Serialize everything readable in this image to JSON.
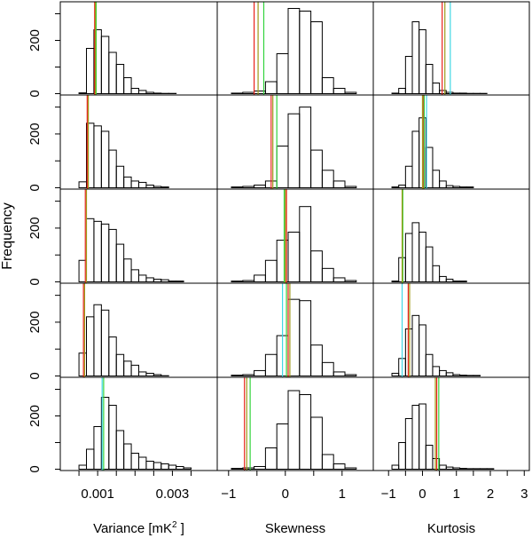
{
  "chart_data": {
    "type": "histogram-grid",
    "ylabel": "Frequency",
    "columns": [
      {
        "xlabel": "Variance [mK",
        "xlabel_sup": "2",
        "xlabel_end": " ]",
        "xlim": [
          0.0,
          0.0042
        ],
        "bin_start": 0.0005,
        "bin_width": 0.0002,
        "xticks": [
          0.0005,
          0.001,
          0.0015,
          0.002,
          0.0025,
          0.003,
          0.0035
        ],
        "xtick_labels": [
          {
            "value": 0.001,
            "label": "0.001"
          },
          {
            "value": 0.003,
            "label": "0.003"
          }
        ]
      },
      {
        "xlabel": "Skewness",
        "xlim": [
          -1.2,
          1.55
        ],
        "bin_start": -0.95,
        "bin_width": 0.2,
        "xticks": [
          -1,
          -0.5,
          0,
          0.5,
          1
        ],
        "xtick_labels": [
          {
            "value": -1,
            "label": "−1"
          },
          {
            "value": 0,
            "label": "0"
          },
          {
            "value": 1,
            "label": "1"
          }
        ]
      },
      {
        "xlabel": "Kurtosis",
        "xlim": [
          -1.45,
          3.15
        ],
        "bin_start": -0.9,
        "bin_width": 0.2,
        "xticks": [
          -1,
          -0.5,
          0,
          0.5,
          1,
          1.5,
          2,
          2.5,
          3
        ],
        "xtick_labels": [
          {
            "value": -1,
            "label": "−1"
          },
          {
            "value": 0,
            "label": "0"
          },
          {
            "value": 1,
            "label": "1"
          },
          {
            "value": 2,
            "label": "2"
          },
          {
            "value": 3,
            "label": "3"
          }
        ]
      }
    ],
    "ylim": [
      -5,
      345
    ],
    "yticks": [
      0,
      100,
      200,
      300
    ],
    "ytick_labels": [
      "0",
      "200"
    ],
    "line_colors": {
      "red": "#e8231b",
      "green": "#32d33c",
      "cyan": "#40d8e4",
      "olive": "#9c9a18"
    },
    "panels": [
      [
        {
          "counts": [
            3,
            170,
            240,
            215,
            155,
            110,
            60,
            20,
            12,
            5,
            2,
            1,
            1
          ],
          "lines": [
            {
              "color": "red",
              "x": 0.00092
            },
            {
              "color": "green",
              "x": 0.00096
            },
            {
              "color": "olive",
              "x": 0.00094
            }
          ]
        },
        {
          "counts": [
            2,
            5,
            10,
            45,
            150,
            320,
            310,
            270,
            60,
            20,
            5
          ],
          "lines": [
            {
              "color": "red",
              "x": -0.55
            },
            {
              "color": "green",
              "x": -0.38
            },
            {
              "color": "olive",
              "x": -0.48
            }
          ]
        },
        {
          "counts": [
            2,
            20,
            140,
            270,
            240,
            110,
            40,
            12,
            5,
            2,
            2,
            1,
            1,
            1
          ],
          "lines": [
            {
              "color": "red",
              "x": 0.58
            },
            {
              "color": "cyan",
              "x": 0.82
            },
            {
              "color": "olive",
              "x": 0.66
            }
          ]
        }
      ],
      [
        {
          "counts": [
            22,
            240,
            230,
            210,
            140,
            80,
            40,
            25,
            20,
            10,
            5,
            3
          ],
          "lines": [
            {
              "color": "red",
              "x": 0.00072
            },
            {
              "color": "olive",
              "x": 0.00075
            }
          ]
        },
        {
          "counts": [
            3,
            5,
            10,
            25,
            155,
            275,
            300,
            140,
            65,
            25,
            5
          ],
          "lines": [
            {
              "color": "red",
              "x": -0.25
            },
            {
              "color": "green",
              "x": -0.15
            },
            {
              "color": "olive",
              "x": -0.22
            }
          ]
        },
        {
          "counts": [
            3,
            10,
            80,
            210,
            260,
            150,
            65,
            25,
            8,
            5,
            3,
            3
          ],
          "lines": [
            {
              "color": "red",
              "x": 0.02
            },
            {
              "color": "cyan",
              "x": 0.12
            },
            {
              "color": "green",
              "x": 0.05
            },
            {
              "color": "olive",
              "x": 0.0
            }
          ]
        }
      ],
      [
        {
          "counts": [
            80,
            235,
            225,
            215,
            195,
            140,
            85,
            45,
            25,
            15,
            10,
            8,
            3,
            3
          ],
          "lines": [
            {
              "color": "red",
              "x": 0.00067
            },
            {
              "color": "olive",
              "x": 0.0007
            }
          ]
        },
        {
          "counts": [
            3,
            5,
            25,
            80,
            155,
            185,
            280,
            115,
            50,
            15,
            5
          ],
          "lines": [
            {
              "color": "red",
              "x": 0.02
            },
            {
              "color": "green",
              "x": -0.02
            },
            {
              "color": "olive",
              "x": 0.0
            }
          ]
        },
        {
          "counts": [
            3,
            90,
            180,
            220,
            185,
            130,
            60,
            20,
            10,
            3,
            3
          ],
          "lines": [
            {
              "color": "green",
              "x": -0.58
            },
            {
              "color": "olive",
              "x": -0.6
            }
          ]
        }
      ],
      [
        {
          "counts": [
            85,
            220,
            265,
            245,
            145,
            80,
            55,
            40,
            15,
            10,
            5,
            1
          ],
          "lines": [
            {
              "color": "red",
              "x": 0.00062
            },
            {
              "color": "olive",
              "x": 0.00065
            }
          ]
        },
        {
          "counts": [
            3,
            5,
            20,
            80,
            150,
            285,
            280,
            115,
            50,
            15,
            5
          ],
          "lines": [
            {
              "color": "red",
              "x": 0.05
            },
            {
              "color": "green",
              "x": 0.02
            },
            {
              "color": "cyan",
              "x": -0.05
            },
            {
              "color": "olive",
              "x": 0.08
            }
          ]
        },
        {
          "counts": [
            10,
            65,
            175,
            225,
            190,
            80,
            35,
            20,
            12,
            5,
            3,
            2,
            2
          ],
          "lines": [
            {
              "color": "red",
              "x": -0.42
            },
            {
              "color": "cyan",
              "x": -0.6
            },
            {
              "color": "olive",
              "x": -0.38
            }
          ]
        }
      ],
      [
        {
          "counts": [
            15,
            75,
            160,
            270,
            240,
            145,
            95,
            60,
            45,
            30,
            25,
            20,
            15,
            10,
            5
          ],
          "lines": [
            {
              "color": "cyan",
              "x": 0.00112
            },
            {
              "color": "green",
              "x": 0.00116
            }
          ]
        },
        {
          "counts": [
            3,
            5,
            10,
            80,
            170,
            295,
            280,
            195,
            55,
            20,
            5
          ],
          "lines": [
            {
              "color": "red",
              "x": -0.72
            },
            {
              "color": "green",
              "x": -0.62
            },
            {
              "color": "olive",
              "x": -0.68
            }
          ]
        },
        {
          "counts": [
            15,
            100,
            190,
            240,
            245,
            90,
            40,
            15,
            8,
            5,
            3,
            2,
            2,
            2,
            2
          ],
          "lines": [
            {
              "color": "red",
              "x": 0.42
            },
            {
              "color": "green",
              "x": 0.48
            },
            {
              "color": "olive",
              "x": 0.38
            }
          ]
        }
      ]
    ]
  }
}
